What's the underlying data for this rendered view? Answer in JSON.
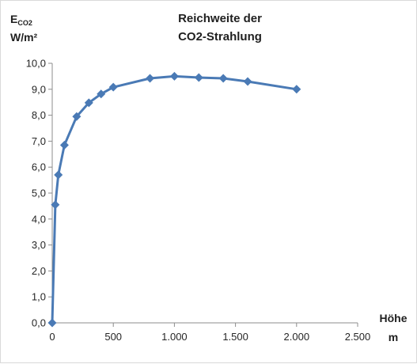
{
  "chart_data": {
    "type": "line",
    "title_lines": [
      "Reichweite der",
      "CO2-Strahlung"
    ],
    "ylabel": {
      "main": "E",
      "subscript": "CO2",
      "unit_line": "W/m²"
    },
    "xlabel_lines": [
      "Höhe",
      "m"
    ],
    "xlim": [
      0,
      2500
    ],
    "ylim": [
      0,
      10
    ],
    "x_ticks": [
      0,
      500,
      1000,
      1500,
      2000,
      2500
    ],
    "x_tick_labels": [
      "0",
      "500",
      "1.000",
      "1.500",
      "2.000",
      "2.500"
    ],
    "y_ticks": [
      0,
      1,
      2,
      3,
      4,
      5,
      6,
      7,
      8,
      9,
      10
    ],
    "y_tick_labels": [
      "0,0",
      "1,0",
      "2,0",
      "3,0",
      "4,0",
      "5,0",
      "6,0",
      "7,0",
      "8,0",
      "9,0",
      "10,0"
    ],
    "grid": false,
    "legend": "none",
    "series": [
      {
        "marker": "diamond",
        "color": "#4a7ab5",
        "x": [
          0,
          25,
          50,
          100,
          200,
          300,
          400,
          500,
          800,
          1000,
          1200,
          1400,
          1600,
          2000
        ],
        "y": [
          0.0,
          4.55,
          5.7,
          6.85,
          7.95,
          8.48,
          8.82,
          9.08,
          9.42,
          9.5,
          9.45,
          9.42,
          9.3,
          9.0
        ]
      }
    ]
  }
}
